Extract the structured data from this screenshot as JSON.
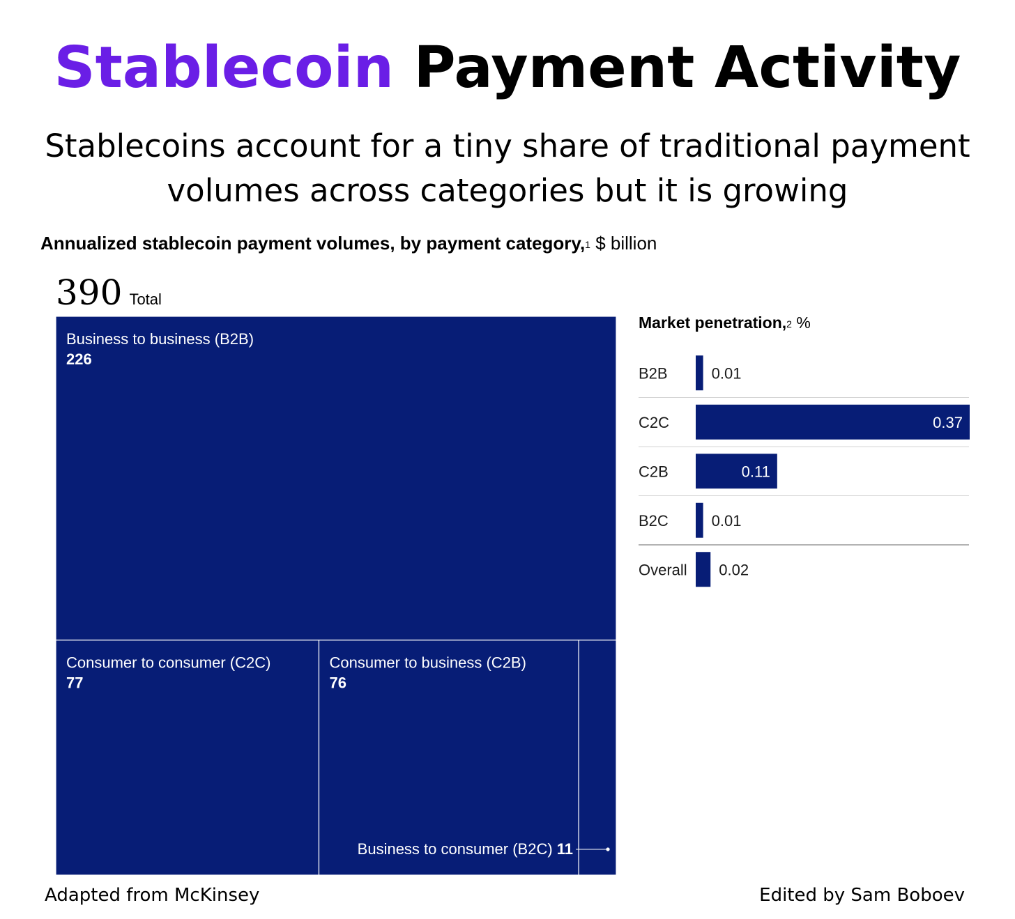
{
  "title": {
    "accent": "Stablecoin",
    "rest": "Payment Activity"
  },
  "subtitle": "Stablecoins account for a tiny share of traditional payment volumes across categories but it is growing",
  "chart_heading": {
    "bold": "Annualized stablecoin payment volumes, by payment category,",
    "footnote": "1",
    "unit": "$ billion"
  },
  "total": {
    "value": "390",
    "label": "Total"
  },
  "penetration_heading": {
    "bold": "Market penetration,",
    "footnote": "2",
    "unit": "%"
  },
  "footer": {
    "left": "Adapted from McKinsey",
    "right": "Edited by Sam Boboev"
  },
  "colors": {
    "accent": "#6a1ee6",
    "navy": "#071d76"
  },
  "chart_data": [
    {
      "type": "treemap",
      "unit": "$ billion",
      "total": 390,
      "items": [
        {
          "label": "Business to business (B2B)",
          "value": 226
        },
        {
          "label": "Consumer to consumer (C2C)",
          "value": 77
        },
        {
          "label": "Consumer to business (C2B)",
          "value": 76
        },
        {
          "label": "Business to consumer (B2C)",
          "value": 11
        }
      ]
    },
    {
      "type": "bar",
      "orientation": "horizontal",
      "unit": "%",
      "categories": [
        "B2B",
        "C2C",
        "C2B",
        "B2C",
        "Overall"
      ],
      "values": [
        0.01,
        0.37,
        0.11,
        0.01,
        0.02
      ],
      "value_labels": [
        "0.01",
        "0.37",
        "0.11",
        "0.01",
        "0.02"
      ],
      "xlim": [
        0,
        0.37
      ]
    }
  ]
}
